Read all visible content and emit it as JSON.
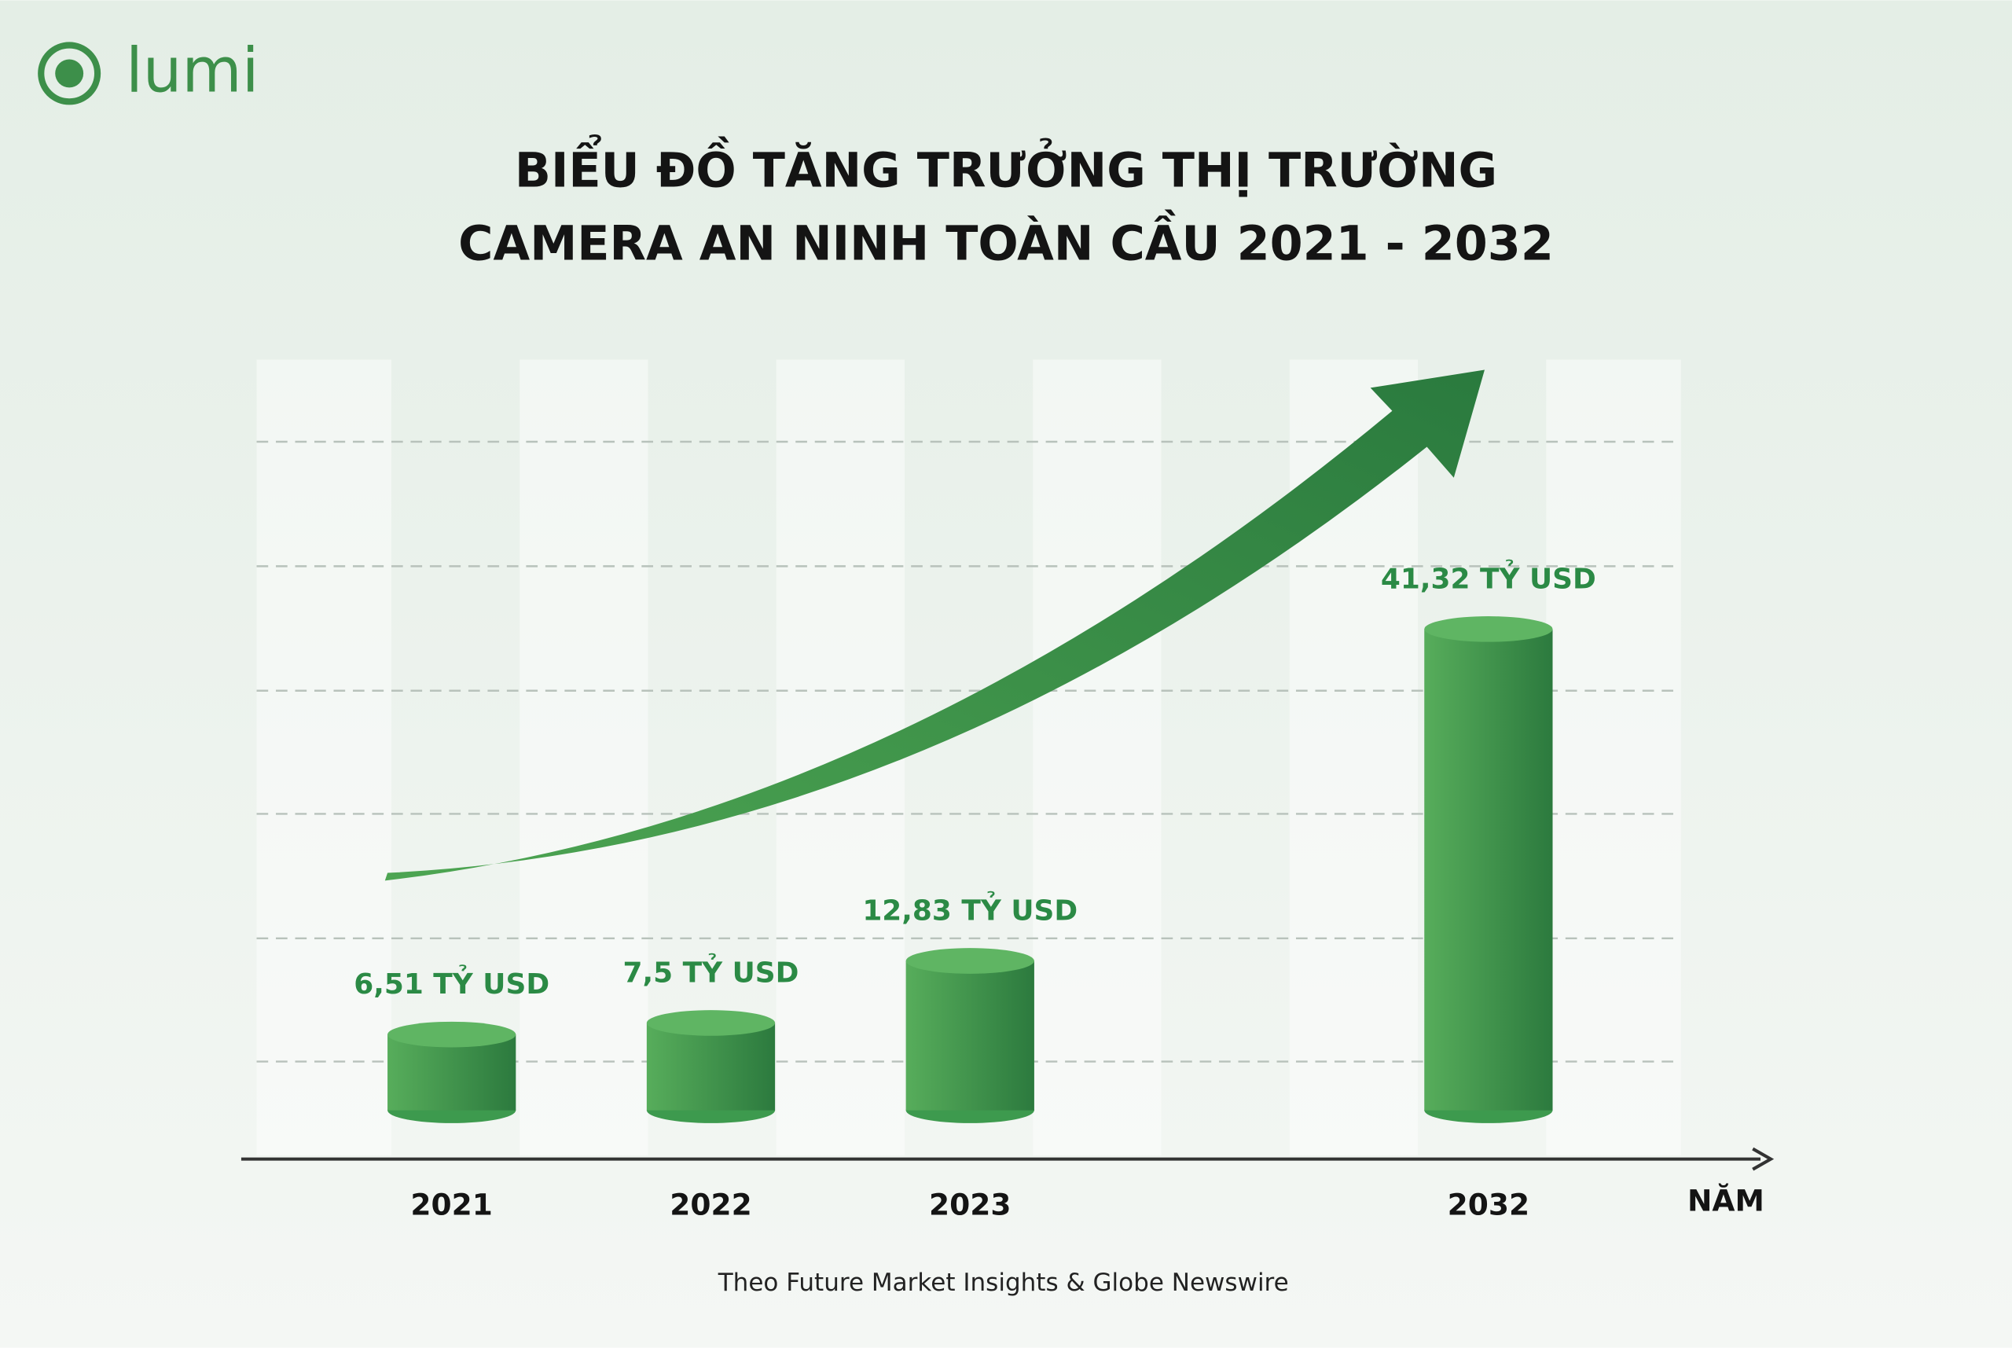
{
  "logo": "lumi",
  "chart_data": {
    "type": "bar",
    "title": [
      "BIỂU ĐỒ TĂNG TRƯỞNG THỊ TRƯỜNG",
      "CAMERA AN NINH TOÀN CẦU 2021 - 2032"
    ],
    "x_label": "NĂM",
    "categories": [
      "2021",
      "2022",
      "2023",
      "2032"
    ],
    "values": [
      6.51,
      7.5,
      12.83,
      41.32
    ],
    "value_labels": [
      "6,51 TỶ USD",
      "7,5 TỶ USD",
      "12,83 TỶ USD",
      "41,32 TỶ USD"
    ],
    "color": "#3d9a4e",
    "label_color": "#2b8a45",
    "source": "Theo Future Market Insights & Globe Newswire"
  }
}
